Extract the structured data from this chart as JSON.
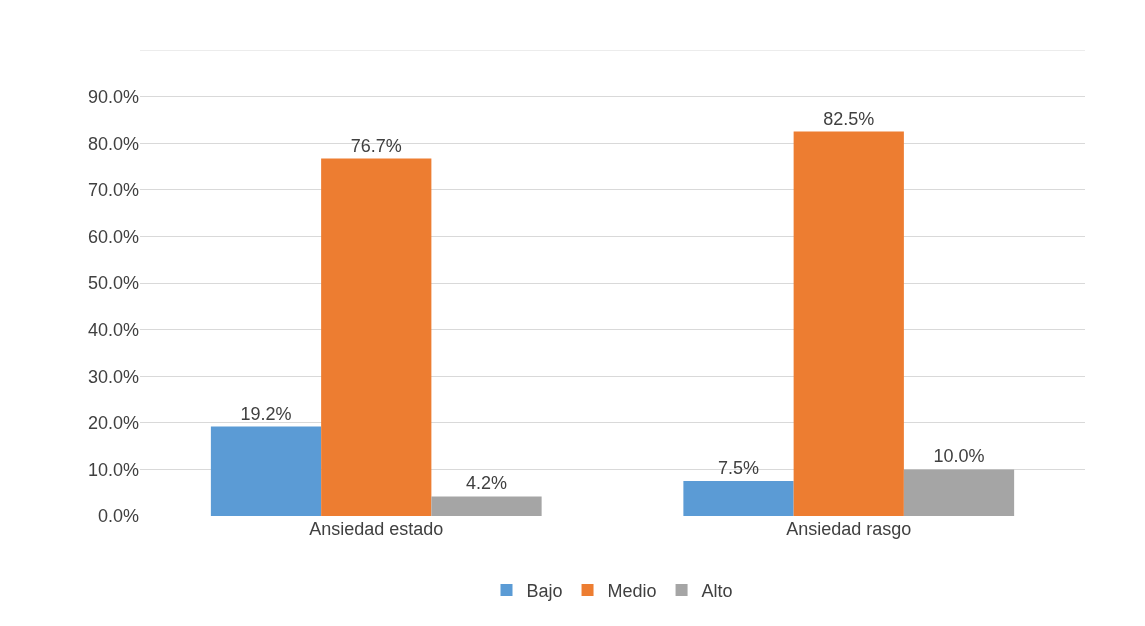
{
  "chart_data": {
    "type": "bar",
    "categories": [
      "Ansiedad estado",
      "Ansiedad rasgo"
    ],
    "series": [
      {
        "name": "Bajo",
        "color": "#5b9bd5",
        "values": [
          19.2,
          7.5
        ],
        "value_labels": [
          "19.2%",
          "7.5%"
        ]
      },
      {
        "name": "Medio",
        "color": "#ed7d31",
        "values": [
          76.7,
          82.5
        ],
        "value_labels": [
          "76.7%",
          "82.5%"
        ]
      },
      {
        "name": "Alto",
        "color": "#a5a5a5",
        "values": [
          4.2,
          10.0
        ],
        "value_labels": [
          "4.2%",
          "10.0%"
        ]
      }
    ],
    "ylim": [
      0,
      100
    ],
    "yticks": [
      {
        "value": 0,
        "label": "0.0%"
      },
      {
        "value": 10,
        "label": "10.0%"
      },
      {
        "value": 20,
        "label": "20.0%"
      },
      {
        "value": 30,
        "label": "30.0%"
      },
      {
        "value": 40,
        "label": "40.0%"
      },
      {
        "value": 50,
        "label": "50.0%"
      },
      {
        "value": 60,
        "label": "60.0%"
      },
      {
        "value": 70,
        "label": "70.0%"
      },
      {
        "value": 80,
        "label": "80.0%"
      },
      {
        "value": 90,
        "label": "90.0%"
      },
      {
        "value": 100,
        "label": null
      }
    ],
    "grid": "y",
    "legend": "bottom"
  }
}
